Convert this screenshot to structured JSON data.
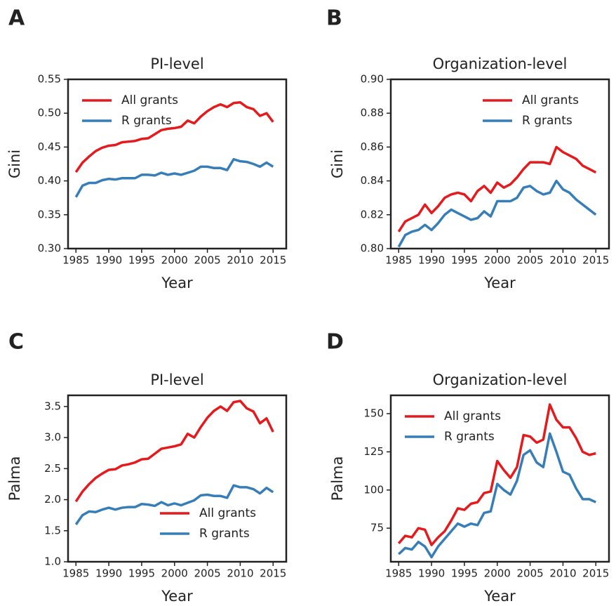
{
  "chart_data": [
    {
      "type": "line",
      "panel": "A",
      "title": "PI-level",
      "xlabel": "Year",
      "ylabel": "Gini",
      "legend": "upper left",
      "x": [
        1985,
        1986,
        1987,
        1988,
        1989,
        1990,
        1991,
        1992,
        1993,
        1994,
        1995,
        1996,
        1997,
        1998,
        1999,
        2000,
        2001,
        2002,
        2003,
        2004,
        2005,
        2006,
        2007,
        2008,
        2009,
        2010,
        2011,
        2012,
        2013,
        2014,
        2015
      ],
      "xlim": [
        1983.8,
        2017
      ],
      "xticks": [
        1985,
        1990,
        1995,
        2000,
        2005,
        2010,
        2015
      ],
      "ylim": [
        0.3,
        0.55
      ],
      "yticks": [
        {
          "value": 0.3,
          "label": "0.30"
        },
        0.35,
        {
          "value": 0.4,
          "label": "0.40"
        },
        0.45,
        {
          "value": 0.5,
          "label": "0.50"
        },
        0.55
      ],
      "series": [
        {
          "name": "All grants",
          "color": "#e41a1c",
          "values": [
            0.413,
            0.427,
            0.436,
            0.444,
            0.449,
            0.452,
            0.453,
            0.457,
            0.458,
            0.459,
            0.462,
            0.463,
            0.469,
            0.475,
            0.477,
            0.478,
            0.48,
            0.489,
            0.485,
            0.495,
            0.503,
            0.509,
            0.513,
            0.509,
            0.515,
            0.516,
            0.509,
            0.506,
            0.496,
            0.5,
            0.487
          ]
        },
        {
          "name": "R grants",
          "color": "#377eb8",
          "values": [
            0.376,
            0.393,
            0.397,
            0.397,
            0.401,
            0.403,
            0.402,
            0.404,
            0.404,
            0.404,
            0.409,
            0.409,
            0.408,
            0.412,
            0.409,
            0.411,
            0.409,
            0.412,
            0.415,
            0.421,
            0.421,
            0.419,
            0.419,
            0.416,
            0.432,
            0.429,
            0.428,
            0.425,
            0.421,
            0.427,
            0.421
          ]
        }
      ]
    },
    {
      "type": "line",
      "panel": "B",
      "title": "Organization-level",
      "xlabel": "Year",
      "ylabel": "Gini",
      "legend": "upper right",
      "x": [
        1985,
        1986,
        1987,
        1988,
        1989,
        1990,
        1991,
        1992,
        1993,
        1994,
        1995,
        1996,
        1997,
        1998,
        1999,
        2000,
        2001,
        2002,
        2003,
        2004,
        2005,
        2006,
        2007,
        2008,
        2009,
        2010,
        2011,
        2012,
        2013,
        2014,
        2015
      ],
      "xlim": [
        1983.8,
        2017
      ],
      "xticks": [
        1985,
        1990,
        1995,
        2000,
        2005,
        2010,
        2015
      ],
      "ylim": [
        0.8,
        0.9
      ],
      "yticks": [
        {
          "value": 0.8,
          "label": "0.80"
        },
        0.82,
        0.84,
        0.86,
        0.88,
        {
          "value": 0.9,
          "label": "0.90"
        }
      ],
      "series": [
        {
          "name": "All grants",
          "color": "#e41a1c",
          "values": [
            0.81,
            0.816,
            0.818,
            0.82,
            0.826,
            0.821,
            0.825,
            0.83,
            0.832,
            0.833,
            0.832,
            0.828,
            0.834,
            0.837,
            0.833,
            0.839,
            0.836,
            0.838,
            0.842,
            0.847,
            0.851,
            0.851,
            0.851,
            0.85,
            0.86,
            0.857,
            0.855,
            0.853,
            0.849,
            0.847,
            0.845
          ]
        },
        {
          "name": "R grants",
          "color": "#377eb8",
          "values": [
            0.801,
            0.808,
            0.81,
            0.811,
            0.814,
            0.811,
            0.815,
            0.82,
            0.823,
            0.821,
            0.819,
            0.817,
            0.818,
            0.822,
            0.819,
            0.828,
            0.828,
            0.828,
            0.83,
            0.836,
            0.837,
            0.834,
            0.832,
            0.833,
            0.84,
            0.835,
            0.833,
            0.829,
            0.826,
            0.823,
            0.82
          ]
        }
      ]
    },
    {
      "type": "line",
      "panel": "C",
      "title": "PI-level",
      "xlabel": "Year",
      "ylabel": "Palma",
      "legend": "lower right",
      "x": [
        1985,
        1986,
        1987,
        1988,
        1989,
        1990,
        1991,
        1992,
        1993,
        1994,
        1995,
        1996,
        1997,
        1998,
        1999,
        2000,
        2001,
        2002,
        2003,
        2004,
        2005,
        2006,
        2007,
        2008,
        2009,
        2010,
        2011,
        2012,
        2013,
        2014,
        2015
      ],
      "xlim": [
        1983.8,
        2017
      ],
      "xticks": [
        1985,
        1990,
        1995,
        2000,
        2005,
        2010,
        2015
      ],
      "ylim": [
        1.0,
        3.68
      ],
      "yticks": [
        {
          "value": 1,
          "label": "1.0"
        },
        1.5,
        {
          "value": 2,
          "label": "2.0"
        },
        2.5,
        {
          "value": 3,
          "label": "3.0"
        },
        3.5
      ],
      "series": [
        {
          "name": "All grants",
          "color": "#e41a1c",
          "values": [
            1.97,
            2.13,
            2.25,
            2.35,
            2.42,
            2.48,
            2.49,
            2.55,
            2.57,
            2.6,
            2.65,
            2.66,
            2.74,
            2.82,
            2.84,
            2.86,
            2.89,
            3.06,
            3.0,
            3.17,
            3.32,
            3.43,
            3.5,
            3.43,
            3.57,
            3.59,
            3.47,
            3.42,
            3.23,
            3.31,
            3.09
          ]
        },
        {
          "name": "R grants",
          "color": "#377eb8",
          "values": [
            1.6,
            1.75,
            1.81,
            1.8,
            1.84,
            1.87,
            1.84,
            1.87,
            1.88,
            1.88,
            1.93,
            1.92,
            1.9,
            1.96,
            1.91,
            1.94,
            1.91,
            1.95,
            1.99,
            2.07,
            2.08,
            2.06,
            2.06,
            2.03,
            2.23,
            2.2,
            2.2,
            2.17,
            2.1,
            2.19,
            2.12
          ]
        }
      ]
    },
    {
      "type": "line",
      "panel": "D",
      "title": "Organization-level",
      "xlabel": "Year",
      "ylabel": "Palma",
      "legend": "upper left",
      "x": [
        1985,
        1986,
        1987,
        1988,
        1989,
        1990,
        1991,
        1992,
        1993,
        1994,
        1995,
        1996,
        1997,
        1998,
        1999,
        2000,
        2001,
        2002,
        2003,
        2004,
        2005,
        2006,
        2007,
        2008,
        2009,
        2010,
        2011,
        2012,
        2013,
        2014,
        2015
      ],
      "xlim": [
        1983.8,
        2017
      ],
      "xticks": [
        1985,
        1990,
        1995,
        2000,
        2005,
        2010,
        2015
      ],
      "ylim": [
        53,
        162
      ],
      "yticks": [
        75,
        100,
        125,
        150
      ],
      "series": [
        {
          "name": "All grants",
          "color": "#e41a1c",
          "values": [
            65,
            70,
            69,
            75,
            74,
            64,
            69,
            73,
            80,
            88,
            87,
            91,
            92,
            98,
            99,
            119,
            113,
            108,
            115,
            136,
            135,
            131,
            133,
            156,
            146,
            141,
            141,
            134,
            125,
            123,
            124
          ]
        },
        {
          "name": "R grants",
          "color": "#377eb8",
          "values": [
            58,
            62,
            61,
            66,
            63,
            56,
            63,
            68,
            73,
            78,
            76,
            78,
            77,
            85,
            86,
            104,
            100,
            97,
            106,
            123,
            126,
            118,
            115,
            137,
            125,
            112,
            110,
            101,
            94,
            94,
            92
          ]
        }
      ]
    }
  ]
}
